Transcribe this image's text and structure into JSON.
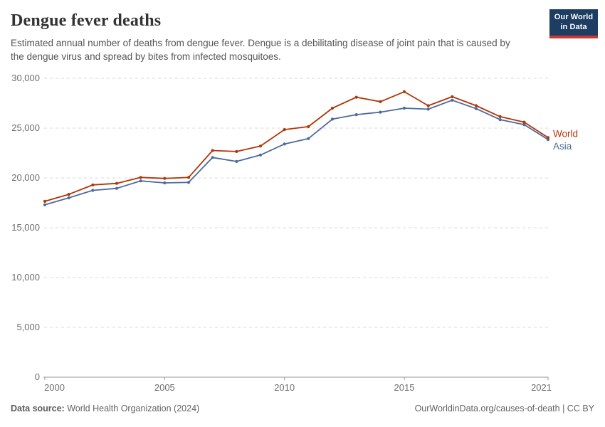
{
  "header": {
    "title": "Dengue fever deaths",
    "subtitle": "Estimated annual number of deaths from dengue fever. Dengue is a debilitating disease of joint pain that is caused by the dengue virus and spread by bites from infected mosquitoes."
  },
  "logo": {
    "line1": "Our World",
    "line2": "in Data",
    "background_color": "#1d3d63",
    "accent_color": "#cd3731"
  },
  "chart_data": {
    "type": "line",
    "title": "Dengue fever deaths",
    "xlabel": "",
    "ylabel": "",
    "x": [
      2000,
      2001,
      2002,
      2003,
      2004,
      2005,
      2006,
      2007,
      2008,
      2009,
      2010,
      2011,
      2012,
      2013,
      2014,
      2015,
      2016,
      2017,
      2018,
      2019,
      2020,
      2021
    ],
    "series": [
      {
        "name": "World",
        "color": "#b13507",
        "values": [
          17650,
          18350,
          19300,
          19450,
          20050,
          19950,
          20050,
          22750,
          22650,
          23200,
          24850,
          25150,
          27000,
          28100,
          27650,
          28650,
          27250,
          28150,
          27250,
          26150,
          25600,
          24050
        ]
      },
      {
        "name": "Asia",
        "color": "#4c6a9c",
        "values": [
          17300,
          18000,
          18750,
          18950,
          19700,
          19500,
          19550,
          22050,
          21650,
          22300,
          23400,
          23950,
          25900,
          26350,
          26600,
          27000,
          26900,
          27800,
          26950,
          25850,
          25350,
          23850
        ]
      }
    ],
    "ylim": [
      0,
      30000
    ],
    "yticks": [
      0,
      5000,
      10000,
      15000,
      20000,
      25000,
      30000
    ],
    "xticks": [
      2000,
      2005,
      2010,
      2015,
      2021
    ],
    "grid": "horizontal dashed gridlines, solid zero axis",
    "legend_position": "labels at right end of lines",
    "marker": "small filled circles on every data point"
  },
  "footer": {
    "source_label": "Data source:",
    "source_value": " World Health Organization (2024)",
    "right_text": "OurWorldinData.org/causes-of-death | CC BY"
  },
  "colors": {
    "grid": "#d9d9d9",
    "axis": "#999999",
    "tick_text": "#6e6e6e"
  }
}
